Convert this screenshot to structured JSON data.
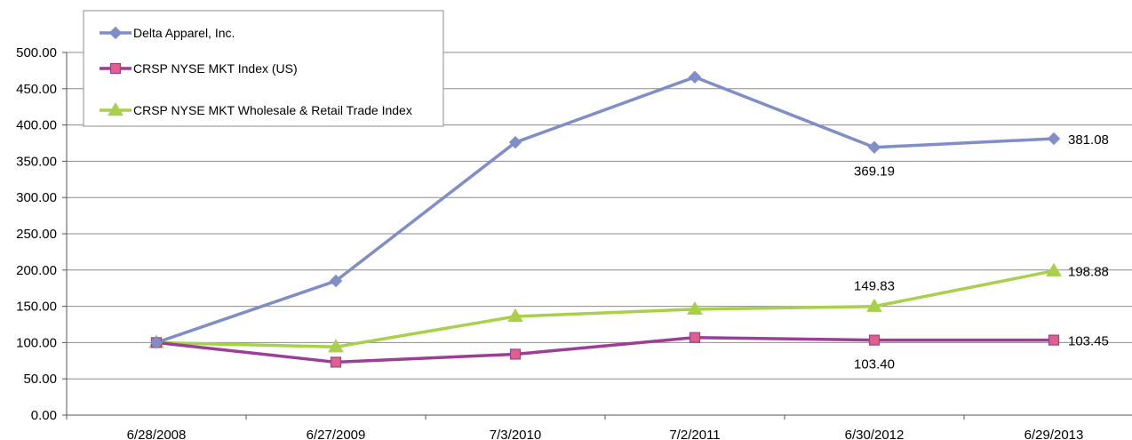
{
  "chart_data": {
    "type": "line",
    "categories": [
      "6/28/2008",
      "6/27/2009",
      "7/3/2010",
      "7/2/2011",
      "6/30/2012",
      "6/29/2013"
    ],
    "ylim": [
      0,
      500
    ],
    "yticks": [
      "0.00",
      "50.00",
      "100.00",
      "150.00",
      "200.00",
      "250.00",
      "300.00",
      "350.00",
      "400.00",
      "450.00",
      "500.00"
    ],
    "grid": true,
    "legend_position": "top-left",
    "series": [
      {
        "name": "Delta Apparel, Inc.",
        "color": "#7f8ec6",
        "marker": "diamond",
        "values": [
          100,
          185,
          376,
          466,
          369.19,
          381.08
        ]
      },
      {
        "name": "CRSP NYSE MKT Index (US)",
        "color": "#9b3f96",
        "marker": "square",
        "marker_color": "#e0608c",
        "values": [
          100,
          73,
          84,
          107,
          103.4,
          103.45
        ]
      },
      {
        "name": "CRSP NYSE MKT Wholesale & Retail Trade Index",
        "color": "#a9d04a",
        "marker": "triangle",
        "values": [
          100,
          94,
          136,
          146,
          149.83,
          198.88
        ]
      }
    ],
    "annotations": [
      {
        "text": "381.08",
        "series": 0,
        "index": 5,
        "anchor": "right"
      },
      {
        "text": "369.19",
        "series": 0,
        "index": 4,
        "anchor": "below"
      },
      {
        "text": "198.88",
        "series": 2,
        "index": 5,
        "anchor": "right"
      },
      {
        "text": "149.83",
        "series": 2,
        "index": 4,
        "anchor": "above"
      },
      {
        "text": "103.45",
        "series": 1,
        "index": 5,
        "anchor": "right"
      },
      {
        "text": "103.40",
        "series": 1,
        "index": 4,
        "anchor": "below"
      }
    ]
  }
}
